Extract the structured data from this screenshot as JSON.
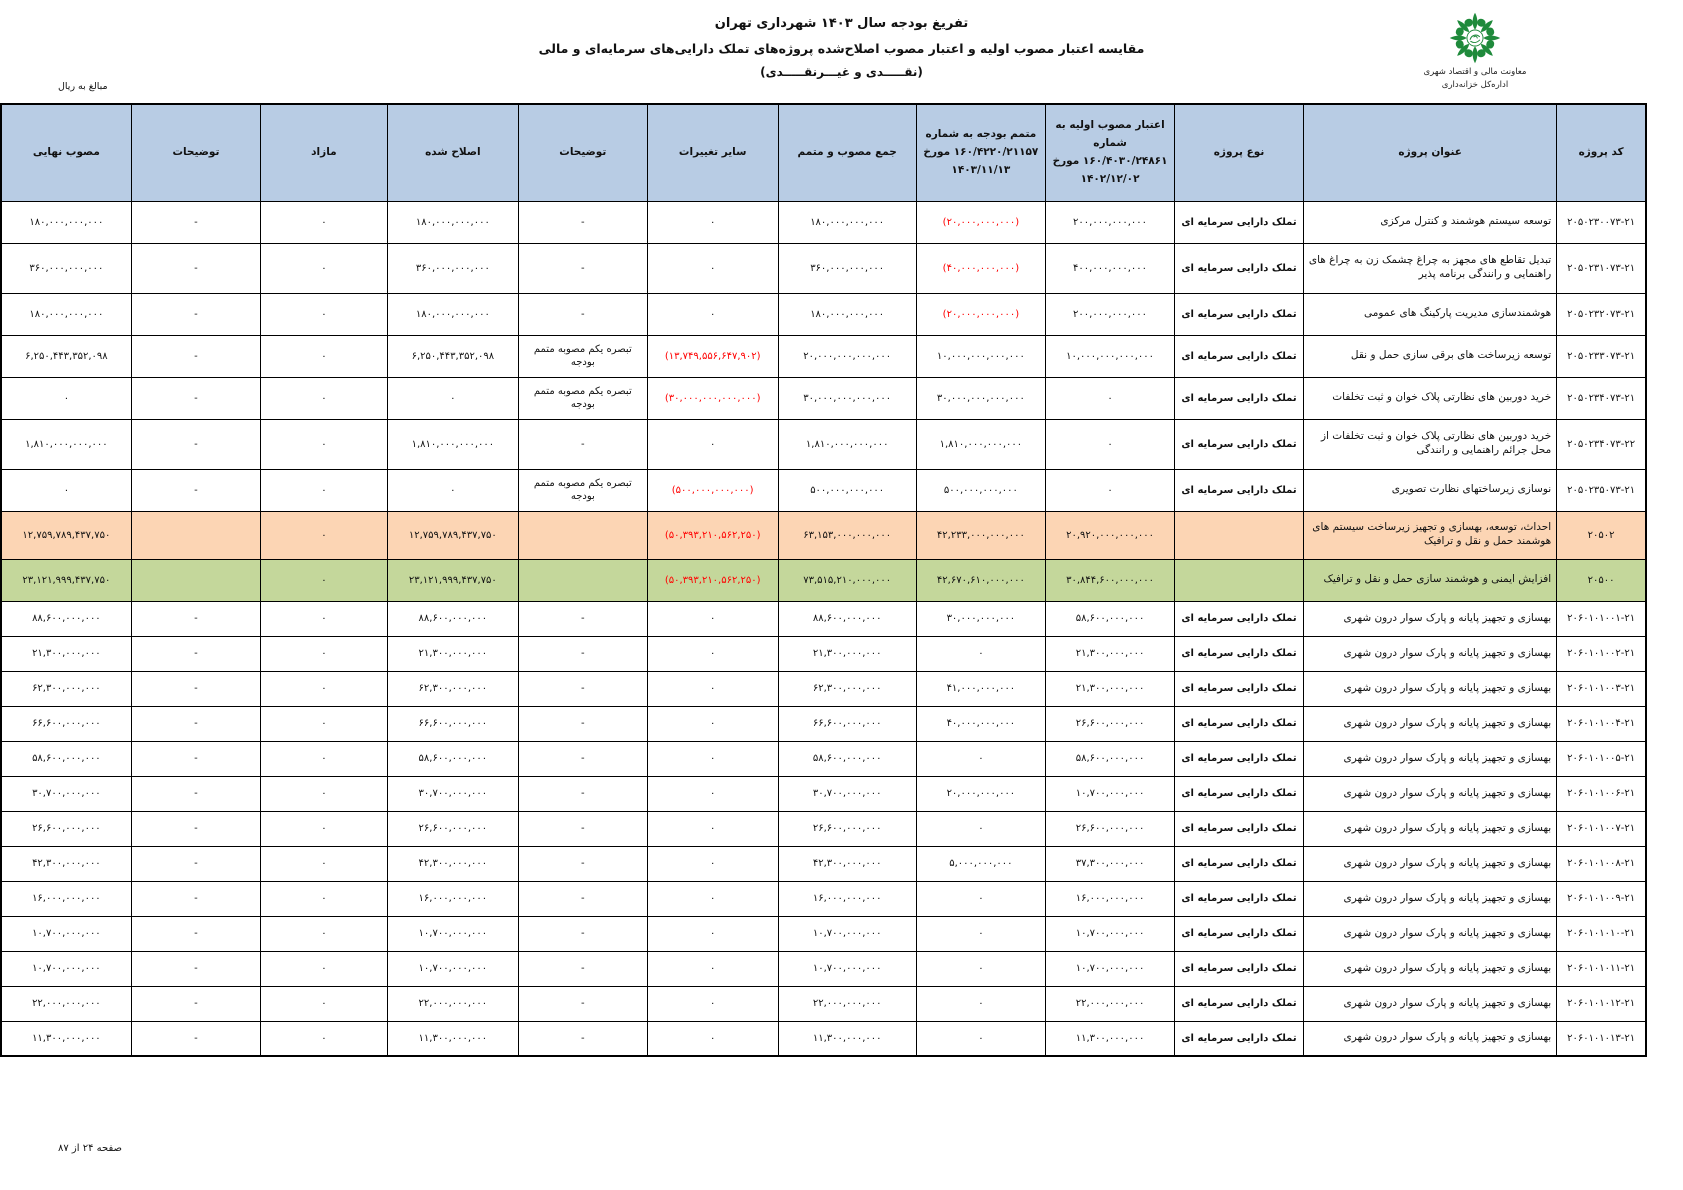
{
  "page": {
    "titles": {
      "line1": "تفریغ بودجه سال ۱۴۰۳ شهرداری تهران",
      "line2": "مقایسه اعتبار مصوب اولیه و اعتبار مصوب اصلاح‌شده پروژه‌های تملک دارایی‌های سرمایه‌ای و مالی",
      "line3": "(نقـــــدی و غیـــرنقـــــدی)"
    },
    "logo": {
      "org_line1": "معاونت مالی و اقتصاد شهری",
      "org_line2": "اداره‌کل خزانه‌داری"
    },
    "amounts_note": "مبالغ به ریال",
    "footer": "صفحه ۲۴ از ۸۷",
    "colors": {
      "header_bg": "#b8cce4",
      "subtotal_bg": "#fcd5b4",
      "total_bg": "#c4d79b",
      "negative": "#ff0000",
      "logo_green": "#1f8a3b"
    }
  },
  "table": {
    "columns": [
      {
        "key": "code",
        "label": "کد پروژه"
      },
      {
        "key": "title",
        "label": "عنوان پروژه"
      },
      {
        "key": "type",
        "label": "نوع پروژه"
      },
      {
        "key": "initial",
        "label": "اعتبار مصوب اولیه به شماره\n۱۶۰/۴۰۳۰/۲۴۸۶۱ مورخ\n۱۴۰۲/۱۲/۰۲"
      },
      {
        "key": "supplement",
        "label": "متمم بودجه به شماره\n۱۶۰/۴۲۲۰/۲۱۱۵۷ مورخ\n۱۴۰۳/۱۱/۱۳"
      },
      {
        "key": "sum",
        "label": "جمع مصوب و متمم"
      },
      {
        "key": "other",
        "label": "سایر تغییرات"
      },
      {
        "key": "note1",
        "label": "توضیحات"
      },
      {
        "key": "amended",
        "label": "اصلاح شده"
      },
      {
        "key": "surplus",
        "label": "مازاد"
      },
      {
        "key": "note2",
        "label": "توضیحات"
      },
      {
        "key": "final",
        "label": "مصوب نهایی"
      }
    ],
    "rows": [
      {
        "style": "",
        "code": "۲۰۵۰۲۳۰۰۷۳-۲۱",
        "title": "توسعه سیستم هوشمند و کنترل مرکزی",
        "type": "تملک دارایی سرمایه ای",
        "initial": "۲۰۰,۰۰۰,۰۰۰,۰۰۰",
        "supplement": "(۲۰,۰۰۰,۰۰۰,۰۰۰)",
        "sum": "۱۸۰,۰۰۰,۰۰۰,۰۰۰",
        "other": "۰",
        "note1": "-",
        "amended": "۱۸۰,۰۰۰,۰۰۰,۰۰۰",
        "surplus": "۰",
        "note2": "-",
        "final": "۱۸۰,۰۰۰,۰۰۰,۰۰۰"
      },
      {
        "style": "",
        "code": "۲۰۵۰۲۳۱۰۷۳-۲۱",
        "title": "تبدیل تقاطع های مجهز به چراغ چشمک زن به چراغ های راهنمایی و رانندگی برنامه پذیر",
        "type": "تملک دارایی سرمایه ای",
        "initial": "۴۰۰,۰۰۰,۰۰۰,۰۰۰",
        "supplement": "(۴۰,۰۰۰,۰۰۰,۰۰۰)",
        "sum": "۳۶۰,۰۰۰,۰۰۰,۰۰۰",
        "other": "۰",
        "note1": "-",
        "amended": "۳۶۰,۰۰۰,۰۰۰,۰۰۰",
        "surplus": "۰",
        "note2": "-",
        "final": "۳۶۰,۰۰۰,۰۰۰,۰۰۰"
      },
      {
        "style": "",
        "code": "۲۰۵۰۲۳۲۰۷۳-۲۱",
        "title": "هوشمندسازی مدیریت پارکینگ های عمومی",
        "type": "تملک دارایی سرمایه ای",
        "initial": "۲۰۰,۰۰۰,۰۰۰,۰۰۰",
        "supplement": "(۲۰,۰۰۰,۰۰۰,۰۰۰)",
        "sum": "۱۸۰,۰۰۰,۰۰۰,۰۰۰",
        "other": "۰",
        "note1": "-",
        "amended": "۱۸۰,۰۰۰,۰۰۰,۰۰۰",
        "surplus": "۰",
        "note2": "-",
        "final": "۱۸۰,۰۰۰,۰۰۰,۰۰۰"
      },
      {
        "style": "",
        "code": "۲۰۵۰۲۳۳۰۷۳-۲۱",
        "title": "توسعه زیرساخت های برقی سازی حمل و نقل",
        "type": "تملک دارایی سرمایه ای",
        "initial": "۱۰,۰۰۰,۰۰۰,۰۰۰,۰۰۰",
        "supplement": "۱۰,۰۰۰,۰۰۰,۰۰۰,۰۰۰",
        "sum": "۲۰,۰۰۰,۰۰۰,۰۰۰,۰۰۰",
        "other": "(۱۳,۷۴۹,۵۵۶,۶۴۷,۹۰۲)",
        "note1": "تبصره یکم مصوبه متمم بودجه",
        "amended": "۶,۲۵۰,۴۴۳,۳۵۲,۰۹۸",
        "surplus": "۰",
        "note2": "-",
        "final": "۶,۲۵۰,۴۴۳,۳۵۲,۰۹۸"
      },
      {
        "style": "",
        "code": "۲۰۵۰۲۳۴۰۷۳-۲۱",
        "title": "خرید دوربین های نظارتی پلاک خوان و ثبت تخلفات",
        "type": "تملک دارایی سرمایه ای",
        "initial": "۰",
        "supplement": "۳۰,۰۰۰,۰۰۰,۰۰۰,۰۰۰",
        "sum": "۳۰,۰۰۰,۰۰۰,۰۰۰,۰۰۰",
        "other": "(۳۰,۰۰۰,۰۰۰,۰۰۰,۰۰۰)",
        "note1": "تبصره یکم مصوبه متمم بودجه",
        "amended": "۰",
        "surplus": "۰",
        "note2": "-",
        "final": "۰"
      },
      {
        "style": "",
        "code": "۲۰۵۰۲۳۴۰۷۳-۲۲",
        "title": "خرید دوربین های نظارتی پلاک خوان و ثبت تخلفات از محل جرائم راهنمایی و رانندگی",
        "type": "تملک دارایی سرمایه ای",
        "initial": "۰",
        "supplement": "۱,۸۱۰,۰۰۰,۰۰۰,۰۰۰",
        "sum": "۱,۸۱۰,۰۰۰,۰۰۰,۰۰۰",
        "other": "۰",
        "note1": "-",
        "amended": "۱,۸۱۰,۰۰۰,۰۰۰,۰۰۰",
        "surplus": "۰",
        "note2": "-",
        "final": "۱,۸۱۰,۰۰۰,۰۰۰,۰۰۰"
      },
      {
        "style": "",
        "code": "۲۰۵۰۲۳۵۰۷۳-۲۱",
        "title": "نوسازی زیرساختهای نظارت تصویری",
        "type": "تملک دارایی سرمایه ای",
        "initial": "۰",
        "supplement": "۵۰۰,۰۰۰,۰۰۰,۰۰۰",
        "sum": "۵۰۰,۰۰۰,۰۰۰,۰۰۰",
        "other": "(۵۰۰,۰۰۰,۰۰۰,۰۰۰)",
        "note1": "تبصره یکم مصوبه متمم بودجه",
        "amended": "۰",
        "surplus": "۰",
        "note2": "-",
        "final": "۰"
      },
      {
        "style": "orange",
        "code": "۲۰۵۰۲",
        "title": "احداث، توسعه، بهسازی و تجهیز زیرساخت سیستم های هوشمند حمل و نقل و ترافیک",
        "type": "",
        "initial": "۲۰,۹۲۰,۰۰۰,۰۰۰,۰۰۰",
        "supplement": "۴۲,۲۳۳,۰۰۰,۰۰۰,۰۰۰",
        "sum": "۶۳,۱۵۳,۰۰۰,۰۰۰,۰۰۰",
        "other": "(۵۰,۳۹۳,۲۱۰,۵۶۲,۲۵۰)",
        "note1": "",
        "amended": "۱۲,۷۵۹,۷۸۹,۴۳۷,۷۵۰",
        "surplus": "۰",
        "note2": "",
        "final": "۱۲,۷۵۹,۷۸۹,۴۳۷,۷۵۰"
      },
      {
        "style": "green",
        "code": "۲۰۵۰۰",
        "title": "افزایش ایمنی و هوشمند سازی حمل و نقل و ترافیک",
        "type": "",
        "initial": "۳۰,۸۴۴,۶۰۰,۰۰۰,۰۰۰",
        "supplement": "۴۲,۶۷۰,۶۱۰,۰۰۰,۰۰۰",
        "sum": "۷۳,۵۱۵,۲۱۰,۰۰۰,۰۰۰",
        "other": "(۵۰,۳۹۳,۲۱۰,۵۶۲,۲۵۰)",
        "note1": "",
        "amended": "۲۳,۱۲۱,۹۹۹,۴۳۷,۷۵۰",
        "surplus": "۰",
        "note2": "",
        "final": "۲۳,۱۲۱,۹۹۹,۴۳۷,۷۵۰"
      },
      {
        "style": "",
        "code": "۲۰۶۰۱۰۱۰۰۱-۲۱",
        "title": "بهسازی و تجهیز پایانه و پارک سوار درون شهری",
        "type": "تملک دارایی سرمایه ای",
        "initial": "۵۸,۶۰۰,۰۰۰,۰۰۰",
        "supplement": "۳۰,۰۰۰,۰۰۰,۰۰۰",
        "sum": "۸۸,۶۰۰,۰۰۰,۰۰۰",
        "other": "۰",
        "note1": "-",
        "amended": "۸۸,۶۰۰,۰۰۰,۰۰۰",
        "surplus": "۰",
        "note2": "-",
        "final": "۸۸,۶۰۰,۰۰۰,۰۰۰"
      },
      {
        "style": "",
        "code": "۲۰۶۰۱۰۱۰۰۲-۲۱",
        "title": "بهسازی و تجهیز پایانه و پارک سوار درون شهری",
        "type": "تملک دارایی سرمایه ای",
        "initial": "۲۱,۳۰۰,۰۰۰,۰۰۰",
        "supplement": "۰",
        "sum": "۲۱,۳۰۰,۰۰۰,۰۰۰",
        "other": "۰",
        "note1": "-",
        "amended": "۲۱,۳۰۰,۰۰۰,۰۰۰",
        "surplus": "۰",
        "note2": "-",
        "final": "۲۱,۳۰۰,۰۰۰,۰۰۰"
      },
      {
        "style": "",
        "code": "۲۰۶۰۱۰۱۰۰۳-۲۱",
        "title": "بهسازی و تجهیز پایانه و پارک سوار درون شهری",
        "type": "تملک دارایی سرمایه ای",
        "initial": "۲۱,۳۰۰,۰۰۰,۰۰۰",
        "supplement": "۴۱,۰۰۰,۰۰۰,۰۰۰",
        "sum": "۶۲,۳۰۰,۰۰۰,۰۰۰",
        "other": "۰",
        "note1": "-",
        "amended": "۶۲,۳۰۰,۰۰۰,۰۰۰",
        "surplus": "۰",
        "note2": "-",
        "final": "۶۲,۳۰۰,۰۰۰,۰۰۰"
      },
      {
        "style": "",
        "code": "۲۰۶۰۱۰۱۰۰۴-۲۱",
        "title": "بهسازی و تجهیز پایانه و پارک سوار درون شهری",
        "type": "تملک دارایی سرمایه ای",
        "initial": "۲۶,۶۰۰,۰۰۰,۰۰۰",
        "supplement": "۴۰,۰۰۰,۰۰۰,۰۰۰",
        "sum": "۶۶,۶۰۰,۰۰۰,۰۰۰",
        "other": "۰",
        "note1": "-",
        "amended": "۶۶,۶۰۰,۰۰۰,۰۰۰",
        "surplus": "۰",
        "note2": "-",
        "final": "۶۶,۶۰۰,۰۰۰,۰۰۰"
      },
      {
        "style": "",
        "code": "۲۰۶۰۱۰۱۰۰۵-۲۱",
        "title": "بهسازی و تجهیز پایانه و پارک سوار درون شهری",
        "type": "تملک دارایی سرمایه ای",
        "initial": "۵۸,۶۰۰,۰۰۰,۰۰۰",
        "supplement": "۰",
        "sum": "۵۸,۶۰۰,۰۰۰,۰۰۰",
        "other": "۰",
        "note1": "-",
        "amended": "۵۸,۶۰۰,۰۰۰,۰۰۰",
        "surplus": "۰",
        "note2": "-",
        "final": "۵۸,۶۰۰,۰۰۰,۰۰۰"
      },
      {
        "style": "",
        "code": "۲۰۶۰۱۰۱۰۰۶-۲۱",
        "title": "بهسازی و تجهیز پایانه و پارک سوار درون شهری",
        "type": "تملک دارایی سرمایه ای",
        "initial": "۱۰,۷۰۰,۰۰۰,۰۰۰",
        "supplement": "۲۰,۰۰۰,۰۰۰,۰۰۰",
        "sum": "۳۰,۷۰۰,۰۰۰,۰۰۰",
        "other": "۰",
        "note1": "-",
        "amended": "۳۰,۷۰۰,۰۰۰,۰۰۰",
        "surplus": "۰",
        "note2": "-",
        "final": "۳۰,۷۰۰,۰۰۰,۰۰۰"
      },
      {
        "style": "",
        "code": "۲۰۶۰۱۰۱۰۰۷-۲۱",
        "title": "بهسازی و تجهیز پایانه و پارک سوار درون شهری",
        "type": "تملک دارایی سرمایه ای",
        "initial": "۲۶,۶۰۰,۰۰۰,۰۰۰",
        "supplement": "۰",
        "sum": "۲۶,۶۰۰,۰۰۰,۰۰۰",
        "other": "۰",
        "note1": "-",
        "amended": "۲۶,۶۰۰,۰۰۰,۰۰۰",
        "surplus": "۰",
        "note2": "-",
        "final": "۲۶,۶۰۰,۰۰۰,۰۰۰"
      },
      {
        "style": "",
        "code": "۲۰۶۰۱۰۱۰۰۸-۲۱",
        "title": "بهسازی و تجهیز پایانه و پارک سوار درون شهری",
        "type": "تملک دارایی سرمایه ای",
        "initial": "۳۷,۳۰۰,۰۰۰,۰۰۰",
        "supplement": "۵,۰۰۰,۰۰۰,۰۰۰",
        "sum": "۴۲,۳۰۰,۰۰۰,۰۰۰",
        "other": "۰",
        "note1": "-",
        "amended": "۴۲,۳۰۰,۰۰۰,۰۰۰",
        "surplus": "۰",
        "note2": "-",
        "final": "۴۲,۳۰۰,۰۰۰,۰۰۰"
      },
      {
        "style": "",
        "code": "۲۰۶۰۱۰۱۰۰۹-۲۱",
        "title": "بهسازی و تجهیز پایانه و پارک سوار درون شهری",
        "type": "تملک دارایی سرمایه ای",
        "initial": "۱۶,۰۰۰,۰۰۰,۰۰۰",
        "supplement": "۰",
        "sum": "۱۶,۰۰۰,۰۰۰,۰۰۰",
        "other": "۰",
        "note1": "-",
        "amended": "۱۶,۰۰۰,۰۰۰,۰۰۰",
        "surplus": "۰",
        "note2": "-",
        "final": "۱۶,۰۰۰,۰۰۰,۰۰۰"
      },
      {
        "style": "",
        "code": "۲۰۶۰۱۰۱۰۱۰-۲۱",
        "title": "بهسازی و تجهیز پایانه و پارک سوار درون شهری",
        "type": "تملک دارایی سرمایه ای",
        "initial": "۱۰,۷۰۰,۰۰۰,۰۰۰",
        "supplement": "۰",
        "sum": "۱۰,۷۰۰,۰۰۰,۰۰۰",
        "other": "۰",
        "note1": "-",
        "amended": "۱۰,۷۰۰,۰۰۰,۰۰۰",
        "surplus": "۰",
        "note2": "-",
        "final": "۱۰,۷۰۰,۰۰۰,۰۰۰"
      },
      {
        "style": "",
        "code": "۲۰۶۰۱۰۱۰۱۱-۲۱",
        "title": "بهسازی و تجهیز پایانه و پارک سوار درون شهری",
        "type": "تملک دارایی سرمایه ای",
        "initial": "۱۰,۷۰۰,۰۰۰,۰۰۰",
        "supplement": "۰",
        "sum": "۱۰,۷۰۰,۰۰۰,۰۰۰",
        "other": "۰",
        "note1": "-",
        "amended": "۱۰,۷۰۰,۰۰۰,۰۰۰",
        "surplus": "۰",
        "note2": "-",
        "final": "۱۰,۷۰۰,۰۰۰,۰۰۰"
      },
      {
        "style": "",
        "code": "۲۰۶۰۱۰۱۰۱۲-۲۱",
        "title": "بهسازی و تجهیز پایانه و پارک سوار درون شهری",
        "type": "تملک دارایی سرمایه ای",
        "initial": "۲۲,۰۰۰,۰۰۰,۰۰۰",
        "supplement": "۰",
        "sum": "۲۲,۰۰۰,۰۰۰,۰۰۰",
        "other": "۰",
        "note1": "-",
        "amended": "۲۲,۰۰۰,۰۰۰,۰۰۰",
        "surplus": "۰",
        "note2": "-",
        "final": "۲۲,۰۰۰,۰۰۰,۰۰۰"
      },
      {
        "style": "",
        "code": "۲۰۶۰۱۰۱۰۱۳-۲۱",
        "title": "بهسازی و تجهیز پایانه و پارک سوار درون شهری",
        "type": "تملک دارایی سرمایه ای",
        "initial": "۱۱,۳۰۰,۰۰۰,۰۰۰",
        "supplement": "۰",
        "sum": "۱۱,۳۰۰,۰۰۰,۰۰۰",
        "other": "۰",
        "note1": "-",
        "amended": "۱۱,۳۰۰,۰۰۰,۰۰۰",
        "surplus": "۰",
        "note2": "-",
        "final": "۱۱,۳۰۰,۰۰۰,۰۰۰"
      }
    ]
  }
}
